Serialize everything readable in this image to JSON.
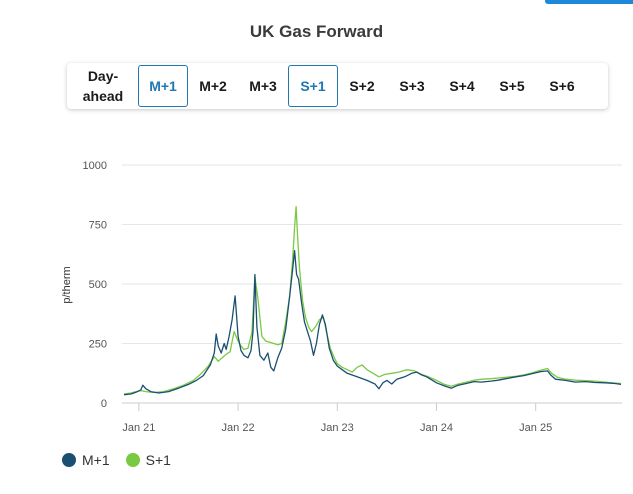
{
  "title": "UK Gas Forward",
  "tabs": [
    {
      "label": "Day-ahead",
      "active": false
    },
    {
      "label": "M+1",
      "active": true
    },
    {
      "label": "M+2",
      "active": false
    },
    {
      "label": "M+3",
      "active": false
    },
    {
      "label": "S+1",
      "active": true
    },
    {
      "label": "S+2",
      "active": false
    },
    {
      "label": "S+3",
      "active": false
    },
    {
      "label": "S+4",
      "active": false
    },
    {
      "label": "S+5",
      "active": false
    },
    {
      "label": "S+6",
      "active": false
    }
  ],
  "colors": {
    "m1": "#1b4f72",
    "s1": "#7ac943",
    "accent": "#1f78b4"
  },
  "chart_data": {
    "type": "line",
    "title": "",
    "xlabel": "",
    "ylabel": "p/therm",
    "ylim": [
      0,
      1000
    ],
    "yticks": [
      0,
      250,
      500,
      750,
      1000
    ],
    "xtick_labels": [
      "Jan 21",
      "Jan 22",
      "Jan 23",
      "Jan 24",
      "Jan 25"
    ],
    "xtick_years": [
      2021,
      2022,
      2023,
      2024,
      2025
    ],
    "xlim": [
      2020.83,
      2025.87
    ],
    "grid": true,
    "legend_position": "bottom-left",
    "series": [
      {
        "name": "M+1",
        "color": "#1b4f72",
        "points": [
          [
            2020.85,
            35
          ],
          [
            2020.92,
            38
          ],
          [
            2020.97,
            45
          ],
          [
            2021.02,
            55
          ],
          [
            2021.04,
            75
          ],
          [
            2021.07,
            60
          ],
          [
            2021.12,
            48
          ],
          [
            2021.2,
            42
          ],
          [
            2021.3,
            48
          ],
          [
            2021.4,
            62
          ],
          [
            2021.5,
            78
          ],
          [
            2021.58,
            95
          ],
          [
            2021.65,
            115
          ],
          [
            2021.72,
            160
          ],
          [
            2021.76,
            210
          ],
          [
            2021.78,
            290
          ],
          [
            2021.8,
            240
          ],
          [
            2021.83,
            210
          ],
          [
            2021.86,
            250
          ],
          [
            2021.88,
            225
          ],
          [
            2021.91,
            280
          ],
          [
            2021.94,
            350
          ],
          [
            2021.97,
            450
          ],
          [
            2022.0,
            280
          ],
          [
            2022.03,
            220
          ],
          [
            2022.06,
            200
          ],
          [
            2022.1,
            190
          ],
          [
            2022.13,
            220
          ],
          [
            2022.15,
            300
          ],
          [
            2022.17,
            540
          ],
          [
            2022.19,
            320
          ],
          [
            2022.22,
            200
          ],
          [
            2022.26,
            180
          ],
          [
            2022.3,
            210
          ],
          [
            2022.33,
            150
          ],
          [
            2022.36,
            135
          ],
          [
            2022.4,
            190
          ],
          [
            2022.44,
            230
          ],
          [
            2022.48,
            310
          ],
          [
            2022.52,
            450
          ],
          [
            2022.55,
            560
          ],
          [
            2022.57,
            640
          ],
          [
            2022.59,
            540
          ],
          [
            2022.61,
            520
          ],
          [
            2022.64,
            420
          ],
          [
            2022.67,
            340
          ],
          [
            2022.7,
            300
          ],
          [
            2022.73,
            260
          ],
          [
            2022.76,
            200
          ],
          [
            2022.79,
            250
          ],
          [
            2022.82,
            330
          ],
          [
            2022.85,
            370
          ],
          [
            2022.88,
            330
          ],
          [
            2022.92,
            230
          ],
          [
            2022.96,
            180
          ],
          [
            2023.0,
            155
          ],
          [
            2023.05,
            140
          ],
          [
            2023.1,
            125
          ],
          [
            2023.2,
            110
          ],
          [
            2023.3,
            95
          ],
          [
            2023.38,
            80
          ],
          [
            2023.42,
            60
          ],
          [
            2023.46,
            85
          ],
          [
            2023.5,
            95
          ],
          [
            2023.55,
            80
          ],
          [
            2023.6,
            100
          ],
          [
            2023.68,
            110
          ],
          [
            2023.75,
            125
          ],
          [
            2023.8,
            130
          ],
          [
            2023.85,
            118
          ],
          [
            2023.9,
            110
          ],
          [
            2024.0,
            85
          ],
          [
            2024.08,
            72
          ],
          [
            2024.15,
            62
          ],
          [
            2024.22,
            75
          ],
          [
            2024.3,
            82
          ],
          [
            2024.38,
            90
          ],
          [
            2024.45,
            88
          ],
          [
            2024.55,
            92
          ],
          [
            2024.62,
            96
          ],
          [
            2024.7,
            102
          ],
          [
            2024.8,
            110
          ],
          [
            2024.88,
            115
          ],
          [
            2024.95,
            122
          ],
          [
            2025.05,
            132
          ],
          [
            2025.12,
            135
          ],
          [
            2025.15,
            118
          ],
          [
            2025.2,
            100
          ],
          [
            2025.3,
            95
          ],
          [
            2025.4,
            88
          ],
          [
            2025.5,
            90
          ],
          [
            2025.6,
            86
          ],
          [
            2025.7,
            85
          ],
          [
            2025.8,
            82
          ],
          [
            2025.86,
            78
          ]
        ]
      },
      {
        "name": "S+1",
        "color": "#7ac943",
        "points": [
          [
            2020.85,
            38
          ],
          [
            2020.92,
            42
          ],
          [
            2020.97,
            48
          ],
          [
            2021.02,
            52
          ],
          [
            2021.07,
            48
          ],
          [
            2021.15,
            44
          ],
          [
            2021.25,
            48
          ],
          [
            2021.35,
            60
          ],
          [
            2021.45,
            75
          ],
          [
            2021.55,
            95
          ],
          [
            2021.62,
            120
          ],
          [
            2021.7,
            155
          ],
          [
            2021.76,
            195
          ],
          [
            2021.8,
            175
          ],
          [
            2021.84,
            190
          ],
          [
            2021.88,
            205
          ],
          [
            2021.92,
            215
          ],
          [
            2021.96,
            300
          ],
          [
            2022.0,
            260
          ],
          [
            2022.03,
            240
          ],
          [
            2022.06,
            225
          ],
          [
            2022.1,
            230
          ],
          [
            2022.14,
            300
          ],
          [
            2022.17,
            530
          ],
          [
            2022.2,
            440
          ],
          [
            2022.24,
            280
          ],
          [
            2022.28,
            260
          ],
          [
            2022.32,
            255
          ],
          [
            2022.36,
            250
          ],
          [
            2022.4,
            245
          ],
          [
            2022.44,
            250
          ],
          [
            2022.48,
            340
          ],
          [
            2022.52,
            450
          ],
          [
            2022.55,
            600
          ],
          [
            2022.57,
            740
          ],
          [
            2022.585,
            825
          ],
          [
            2022.6,
            700
          ],
          [
            2022.62,
            560
          ],
          [
            2022.65,
            430
          ],
          [
            2022.68,
            360
          ],
          [
            2022.71,
            320
          ],
          [
            2022.74,
            300
          ],
          [
            2022.78,
            320
          ],
          [
            2022.82,
            350
          ],
          [
            2022.86,
            360
          ],
          [
            2022.89,
            300
          ],
          [
            2022.93,
            230
          ],
          [
            2022.97,
            190
          ],
          [
            2023.0,
            165
          ],
          [
            2023.05,
            150
          ],
          [
            2023.1,
            140
          ],
          [
            2023.15,
            130
          ],
          [
            2023.2,
            150
          ],
          [
            2023.25,
            160
          ],
          [
            2023.3,
            140
          ],
          [
            2023.36,
            125
          ],
          [
            2023.42,
            110
          ],
          [
            2023.48,
            120
          ],
          [
            2023.55,
            125
          ],
          [
            2023.62,
            130
          ],
          [
            2023.7,
            140
          ],
          [
            2023.78,
            135
          ],
          [
            2023.85,
            120
          ],
          [
            2023.92,
            110
          ],
          [
            2024.0,
            95
          ],
          [
            2024.08,
            78
          ],
          [
            2024.15,
            70
          ],
          [
            2024.22,
            80
          ],
          [
            2024.3,
            88
          ],
          [
            2024.38,
            96
          ],
          [
            2024.46,
            100
          ],
          [
            2024.55,
            102
          ],
          [
            2024.62,
            105
          ],
          [
            2024.7,
            108
          ],
          [
            2024.8,
            112
          ],
          [
            2024.88,
            118
          ],
          [
            2024.95,
            125
          ],
          [
            2025.05,
            138
          ],
          [
            2025.12,
            145
          ],
          [
            2025.16,
            125
          ],
          [
            2025.22,
            108
          ],
          [
            2025.3,
            100
          ],
          [
            2025.4,
            96
          ],
          [
            2025.5,
            94
          ],
          [
            2025.6,
            92
          ],
          [
            2025.7,
            88
          ],
          [
            2025.8,
            84
          ],
          [
            2025.86,
            82
          ]
        ]
      }
    ]
  }
}
